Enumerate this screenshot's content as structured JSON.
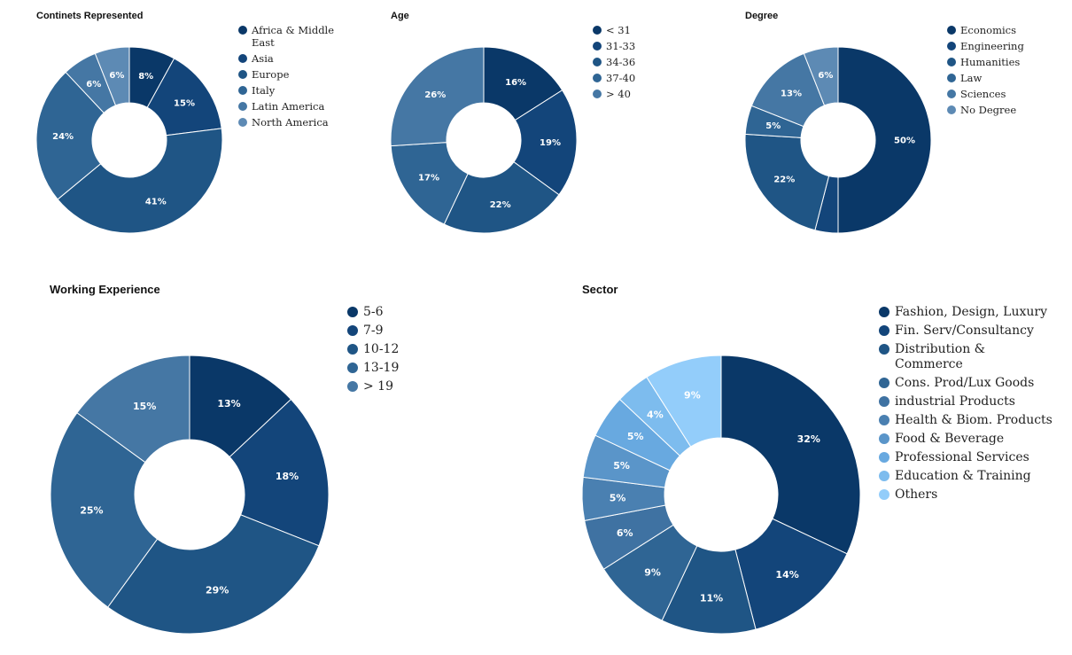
{
  "chart_data": [
    {
      "type": "pie",
      "title": "Continets Represented",
      "categories": [
        "Africa & Middle East",
        "Asia",
        "Europe",
        "Italy",
        "Latin America",
        "North America"
      ],
      "values": [
        8,
        15,
        41,
        24,
        6,
        6
      ],
      "value_labels": [
        "8%",
        "15%",
        "41%",
        "24%",
        "6%",
        "6%"
      ],
      "colors": [
        "#0a3868",
        "#13457a",
        "#1f5585",
        "#2f6594",
        "#4577a4",
        "#5d8ab4"
      ]
    },
    {
      "type": "pie",
      "title": "Age",
      "categories": [
        "< 31",
        "31-33",
        "34-36",
        "37-40",
        "> 40"
      ],
      "values": [
        16,
        19,
        22,
        17,
        26
      ],
      "value_labels": [
        "16%",
        "19%",
        "22%",
        "17%",
        "26%"
      ],
      "colors": [
        "#0a3868",
        "#13457a",
        "#1f5585",
        "#2f6594",
        "#4577a4"
      ]
    },
    {
      "type": "pie",
      "title": "Degree",
      "categories": [
        "Economics",
        "Engineering",
        "Humanities",
        "Law",
        "Sciences",
        "No Degree"
      ],
      "values": [
        50,
        4,
        22,
        5,
        13,
        6
      ],
      "value_labels": [
        "50%",
        "",
        "22%",
        "5%",
        "13%",
        "6%"
      ],
      "colors": [
        "#0a3868",
        "#13457a",
        "#1f5585",
        "#2f6594",
        "#4577a4",
        "#5d8ab4"
      ]
    },
    {
      "type": "pie",
      "title": "Working Experience",
      "categories": [
        "5-6",
        "7-9",
        "10-12",
        "13-19",
        "> 19"
      ],
      "values": [
        13,
        18,
        29,
        25,
        15
      ],
      "value_labels": [
        "13%",
        "18%",
        "29%",
        "25%",
        "15%"
      ],
      "colors": [
        "#0a3868",
        "#13457a",
        "#1f5585",
        "#2f6594",
        "#4577a4"
      ]
    },
    {
      "type": "pie",
      "title": "Sector",
      "categories": [
        "Fashion, Design, Luxury",
        "Fin. Serv/Consultancy",
        "Distribution & Commerce",
        "Cons. Prod/Lux Goods",
        "industrial Products",
        "Health & Biom. Products",
        "Food & Beverage",
        "Professional Services",
        "Education & Training",
        "Others"
      ],
      "values": [
        32,
        14,
        11,
        9,
        6,
        5,
        5,
        5,
        4,
        9
      ],
      "value_labels": [
        "32%",
        "14%",
        "11%",
        "9%",
        "6%",
        "5%",
        "5%",
        "5%",
        "4%",
        "9%"
      ],
      "colors": [
        "#0a3868",
        "#13457a",
        "#1f5585",
        "#2f6594",
        "#3f72a2",
        "#4a80b1",
        "#5a95c9",
        "#68a9e0",
        "#7dbcee",
        "#93cdfa"
      ]
    }
  ]
}
